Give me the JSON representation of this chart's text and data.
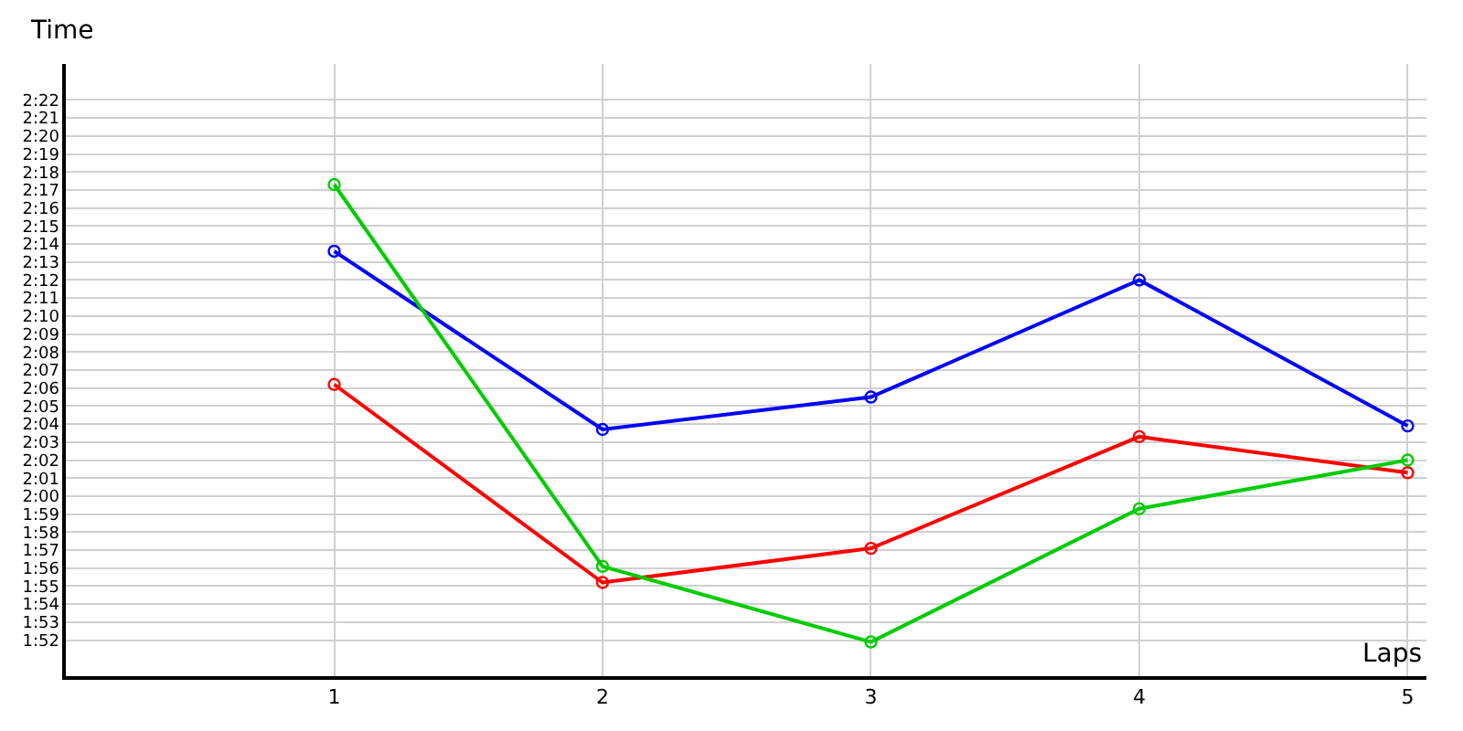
{
  "chart_data": {
    "type": "line",
    "xlabel": "Laps",
    "ylabel": "Time",
    "marker": "circle",
    "grid": true,
    "legend": false,
    "x": [
      1,
      2,
      3,
      4,
      5
    ],
    "xlim": [
      0,
      5.07
    ],
    "xticks": [
      1,
      2,
      3,
      4,
      5
    ],
    "ylim": [
      110,
      144
    ],
    "yticks": [
      {
        "value": 112,
        "label": "1:52"
      },
      {
        "value": 113,
        "label": "1:53"
      },
      {
        "value": 114,
        "label": "1:54"
      },
      {
        "value": 115,
        "label": "1:55"
      },
      {
        "value": 116,
        "label": "1:56"
      },
      {
        "value": 117,
        "label": "1:57"
      },
      {
        "value": 118,
        "label": "1:58"
      },
      {
        "value": 119,
        "label": "1:59"
      },
      {
        "value": 120,
        "label": "2:00"
      },
      {
        "value": 121,
        "label": "2:01"
      },
      {
        "value": 122,
        "label": "2:02"
      },
      {
        "value": 123,
        "label": "2:03"
      },
      {
        "value": 124,
        "label": "2:04"
      },
      {
        "value": 125,
        "label": "2:05"
      },
      {
        "value": 126,
        "label": "2:06"
      },
      {
        "value": 127,
        "label": "2:07"
      },
      {
        "value": 128,
        "label": "2:08"
      },
      {
        "value": 129,
        "label": "2:09"
      },
      {
        "value": 130,
        "label": "2:10"
      },
      {
        "value": 131,
        "label": "2:11"
      },
      {
        "value": 132,
        "label": "2:12"
      },
      {
        "value": 133,
        "label": "2:13"
      },
      {
        "value": 134,
        "label": "2:14"
      },
      {
        "value": 135,
        "label": "2:15"
      },
      {
        "value": 136,
        "label": "2:16"
      },
      {
        "value": 137,
        "label": "2:17"
      },
      {
        "value": 138,
        "label": "2:18"
      },
      {
        "value": 139,
        "label": "2:19"
      },
      {
        "value": 140,
        "label": "2:20"
      },
      {
        "value": 141,
        "label": "2:21"
      },
      {
        "value": 142,
        "label": "2:22"
      }
    ],
    "series": [
      {
        "color": "#0000ff",
        "values": [
          133.6,
          123.7,
          125.5,
          132.0,
          123.9
        ]
      },
      {
        "color": "#ff0000",
        "values": [
          126.2,
          115.2,
          117.1,
          123.3,
          121.3
        ]
      },
      {
        "color": "#00cc00",
        "values": [
          137.3,
          116.1,
          111.9,
          119.3,
          122.0
        ]
      }
    ]
  }
}
